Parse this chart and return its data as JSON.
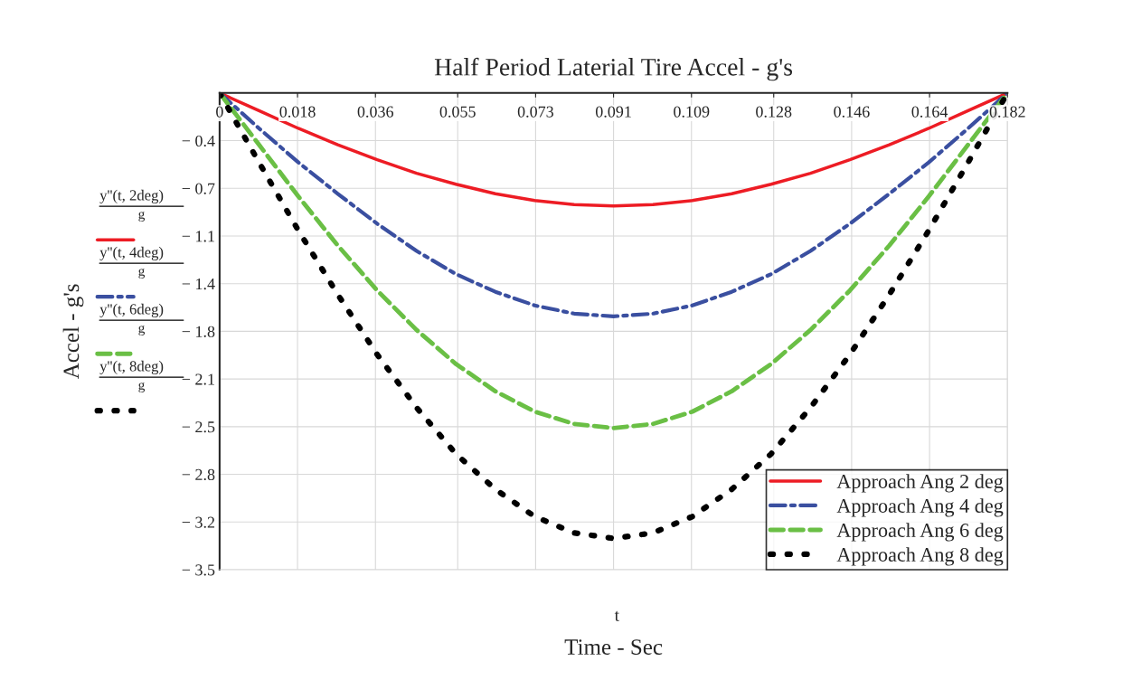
{
  "chart_data": {
    "type": "line",
    "title": "Half Period Laterial Tire Accel - g's",
    "xlabel": "Time - Sec",
    "ylabel": "Accel - g's",
    "annotations": [
      "t",
      "y''(t, 2deg)",
      "g",
      "y''(t, 4deg)",
      "g",
      "y''(t, 6deg)",
      "g",
      "y''(t, 8deg)",
      "g"
    ],
    "x": [
      0,
      0.0091,
      0.0182,
      0.0273,
      0.0364,
      0.0455,
      0.0546,
      0.0637,
      0.0728,
      0.0819,
      0.091,
      0.1001,
      0.1092,
      0.1183,
      0.1274,
      0.1365,
      0.1456,
      0.1547,
      0.1638,
      0.1729,
      0.182
    ],
    "series": [
      {
        "name": "Approach Ang 2 deg",
        "color": "#ed1c24",
        "line_style": "solid",
        "values": [
          0,
          -0.13,
          -0.26,
          -0.38,
          -0.49,
          -0.59,
          -0.67,
          -0.74,
          -0.79,
          -0.82,
          -0.83,
          -0.82,
          -0.79,
          -0.74,
          -0.67,
          -0.59,
          -0.49,
          -0.38,
          -0.26,
          -0.13,
          0
        ]
      },
      {
        "name": "Approach Ang 4 deg",
        "color": "#3a4fa0",
        "line_style": "dashdot",
        "values": [
          0,
          -0.26,
          -0.51,
          -0.74,
          -0.96,
          -1.16,
          -1.33,
          -1.46,
          -1.56,
          -1.62,
          -1.64,
          -1.62,
          -1.56,
          -1.46,
          -1.33,
          -1.16,
          -0.96,
          -0.74,
          -0.51,
          -0.26,
          0
        ]
      },
      {
        "name": "Approach Ang 6 deg",
        "color": "#6abf45",
        "line_style": "dashed",
        "values": [
          0,
          -0.38,
          -0.76,
          -1.12,
          -1.45,
          -1.74,
          -1.99,
          -2.19,
          -2.34,
          -2.43,
          -2.46,
          -2.43,
          -2.34,
          -2.19,
          -1.99,
          -1.74,
          -1.45,
          -1.12,
          -0.76,
          -0.38,
          0
        ]
      },
      {
        "name": "Approach Ang 8 deg",
        "color": "#000000",
        "line_style": "dotted",
        "values": [
          0,
          -0.51,
          -1.01,
          -1.48,
          -1.92,
          -2.31,
          -2.65,
          -2.91,
          -3.11,
          -3.23,
          -3.27,
          -3.23,
          -3.11,
          -2.91,
          -2.65,
          -2.31,
          -1.92,
          -1.48,
          -1.01,
          -0.51,
          0
        ]
      }
    ],
    "xlim": [
      0,
      0.182
    ],
    "ylim": [
      -3.5,
      0
    ],
    "xticks": [
      0,
      0.018,
      0.036,
      0.055,
      0.073,
      0.091,
      0.109,
      0.128,
      0.146,
      0.164,
      0.182
    ],
    "yticks": [
      {
        "value": 0,
        "label": null
      },
      {
        "value": -0.35,
        "label": "− 0.4"
      },
      {
        "value": -0.7,
        "label": "− 0.7"
      },
      {
        "value": -1.05,
        "label": "− 1.1"
      },
      {
        "value": -1.4,
        "label": "− 1.4"
      },
      {
        "value": -1.75,
        "label": "− 1.8"
      },
      {
        "value": -2.1,
        "label": "− 2.1"
      },
      {
        "value": -2.45,
        "label": "− 2.5"
      },
      {
        "value": -2.8,
        "label": "− 2.8"
      },
      {
        "value": -3.15,
        "label": "− 3.2"
      },
      {
        "value": -3.5,
        "label": "− 3.5"
      }
    ],
    "grid": true,
    "legend": "bottom right"
  }
}
